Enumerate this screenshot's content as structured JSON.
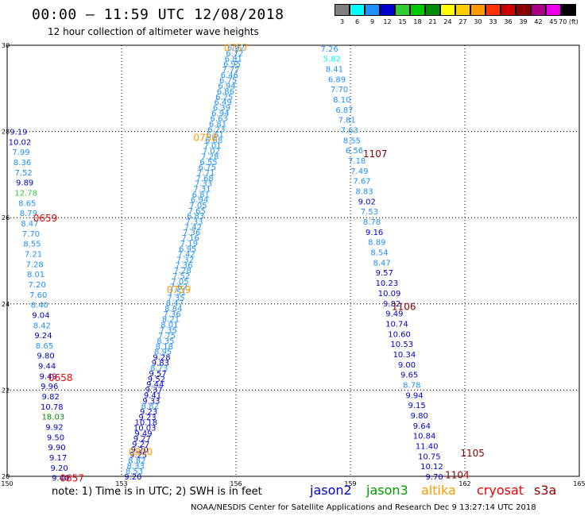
{
  "title": "00:00 – 11:59 UTC 12/08/2018",
  "subtitle": "12 hour collection of altimeter wave heights",
  "legend": {
    "items": [
      {
        "label": "3",
        "color": "#808080"
      },
      {
        "label": "6",
        "color": "#00ffff"
      },
      {
        "label": "9",
        "color": "#1e90ff"
      },
      {
        "label": "12",
        "color": "#0000cd"
      },
      {
        "label": "15",
        "color": "#32cd32"
      },
      {
        "label": "18",
        "color": "#00c800"
      },
      {
        "label": "21",
        "color": "#008c00"
      },
      {
        "label": "24",
        "color": "#ffff00"
      },
      {
        "label": "27",
        "color": "#ffcc00"
      },
      {
        "label": "30",
        "color": "#ff9900"
      },
      {
        "label": "33",
        "color": "#ff3300"
      },
      {
        "label": "36",
        "color": "#cc0000"
      },
      {
        "label": "39",
        "color": "#8b0000"
      },
      {
        "label": "42",
        "color": "#aa0088"
      },
      {
        "label": "45",
        "color": "#ee00ee"
      },
      {
        "label": "70 (ft)",
        "color": "#000000"
      }
    ]
  },
  "note": "note: 1) Time is in UTC; 2) SWH is in feet",
  "satellites": [
    {
      "name": "jason2",
      "color": "#0000cc"
    },
    {
      "name": "jason3",
      "color": "#009900"
    },
    {
      "name": "altika",
      "color": "#ff9900"
    },
    {
      "name": "cryosat",
      "color": "#ee0000"
    },
    {
      "name": "s3a",
      "color": "#8b0000"
    }
  ],
  "credit": "NOAA/NESDIS Center for Satellite Applications and Research   Dec  9 13:27:14 UTC 2018",
  "chart_data": {
    "type": "scatter",
    "x_ticks": [
      "150",
      "153",
      "156",
      "159",
      "162",
      "165"
    ],
    "y_ticks": [
      "20",
      "22",
      "24",
      "26",
      "28",
      "30"
    ],
    "xlim": [
      150,
      165
    ],
    "ylim": [
      20,
      30
    ],
    "grid": true,
    "track_times": [
      {
        "text": "0757",
        "lon": 156.0,
        "lat": 29.95,
        "color": "#ff9900"
      },
      {
        "text": "0758",
        "lon": 155.2,
        "lat": 27.87,
        "color": "#ff9900"
      },
      {
        "text": "0759",
        "lon": 154.5,
        "lat": 24.35,
        "color": "#ff9900"
      },
      {
        "text": "0800",
        "lon": 153.5,
        "lat": 20.58,
        "color": "#ff9900"
      },
      {
        "text": "0659",
        "lon": 151.0,
        "lat": 26.0,
        "color": "#ee0000"
      },
      {
        "text": "0658",
        "lon": 151.4,
        "lat": 22.3,
        "color": "#ee0000"
      },
      {
        "text": "0657",
        "lon": 151.7,
        "lat": 19.97,
        "color": "#ee0000"
      },
      {
        "text": "1107",
        "lon": 159.65,
        "lat": 27.5,
        "color": "#8b0000"
      },
      {
        "text": "1106",
        "lon": 160.4,
        "lat": 23.95,
        "color": "#8b0000"
      },
      {
        "text": "1105",
        "lon": 162.2,
        "lat": 20.55,
        "color": "#8b0000"
      },
      {
        "text": "1104",
        "lon": 161.8,
        "lat": 20.05,
        "color": "#8b0000"
      }
    ],
    "tracks": [
      {
        "name": "cryosat-west",
        "start": [
          150.3,
          28.0
        ],
        "end": [
          151.4,
          19.97
        ],
        "values": [
          "9.19",
          "10.02",
          "7.99",
          "8.36",
          "7.52",
          "9.89",
          "12.78",
          "8.65",
          "8.79",
          "8.47",
          "7.70",
          "8.55",
          "7.21",
          "7.28",
          "8.01",
          "7.20",
          "7.60",
          "8.40",
          "9.04",
          "8.42",
          "9.24",
          "8.65",
          "9.80",
          "9.44",
          "9.49",
          "9.96",
          "9.82",
          "10.78",
          "18.03",
          "9.92",
          "9.50",
          "9.90",
          "9.17",
          "9.20",
          "9.40"
        ]
      },
      {
        "name": "altika",
        "start": [
          156.0,
          29.95
        ],
        "end": [
          153.3,
          20.0
        ],
        "values": [
          "6.92",
          "6.72",
          "6.81",
          "6.95",
          "7.77",
          "6.46",
          "6.75",
          "6.94",
          "6.86",
          "6.25",
          "6.49",
          "6.39",
          "6.94",
          "6.63",
          "6.81",
          "6.23",
          "6.61",
          "6.88",
          "7.01",
          "7.02",
          "7.28",
          "6.55",
          "6.75",
          "7.71",
          "7.68",
          "7.33",
          "7.31",
          "6.81",
          "6.94",
          "7.05",
          "7.65",
          "6.83",
          "7.33",
          "7.42",
          "7.36",
          "7.16",
          "7.19",
          "6.95",
          "7.42",
          "7.32",
          "7.36",
          "7.28",
          "7.52",
          "7.05",
          "7.62",
          "7.51",
          "7.35",
          "8.47",
          "8.84",
          "7.36",
          "8.21",
          "8.01",
          "7.35",
          "7.75",
          "8.35",
          "8.18",
          "8.95",
          "9.28",
          "9.83",
          "8.73",
          "9.57",
          "9.52",
          "9.44",
          "9.37",
          "9.41",
          "9.33",
          "8.82",
          "9.23",
          "9.23",
          "10.18",
          "10.03",
          "9.49",
          "9.27",
          "9.27",
          "9.20",
          "9.25",
          "8.82",
          "8.33",
          "8.53",
          "9.20"
        ]
      },
      {
        "name": "s3a-east",
        "start": [
          158.45,
          29.93
        ],
        "end": [
          161.2,
          20.0
        ],
        "values": [
          "7.26",
          "5.82",
          "8.41",
          "6.89",
          "7.70",
          "8.10",
          "6.87",
          "7.81",
          "7.63",
          "8.55",
          "6.56",
          "7.18",
          "7.49",
          "7.67",
          "8.83",
          "9.02",
          "7.53",
          "8.78",
          "9.16",
          "8.89",
          "8.54",
          "8.47",
          "9.57",
          "10.23",
          "10.09",
          "9.82",
          "9.49",
          "10.74",
          "10.60",
          "10.53",
          "10.34",
          "9.00",
          "9.65",
          "8.78",
          "9.94",
          "9.15",
          "9.80",
          "9.64",
          "10.84",
          "11.40",
          "10.75",
          "10.12",
          "9.70"
        ]
      }
    ]
  }
}
